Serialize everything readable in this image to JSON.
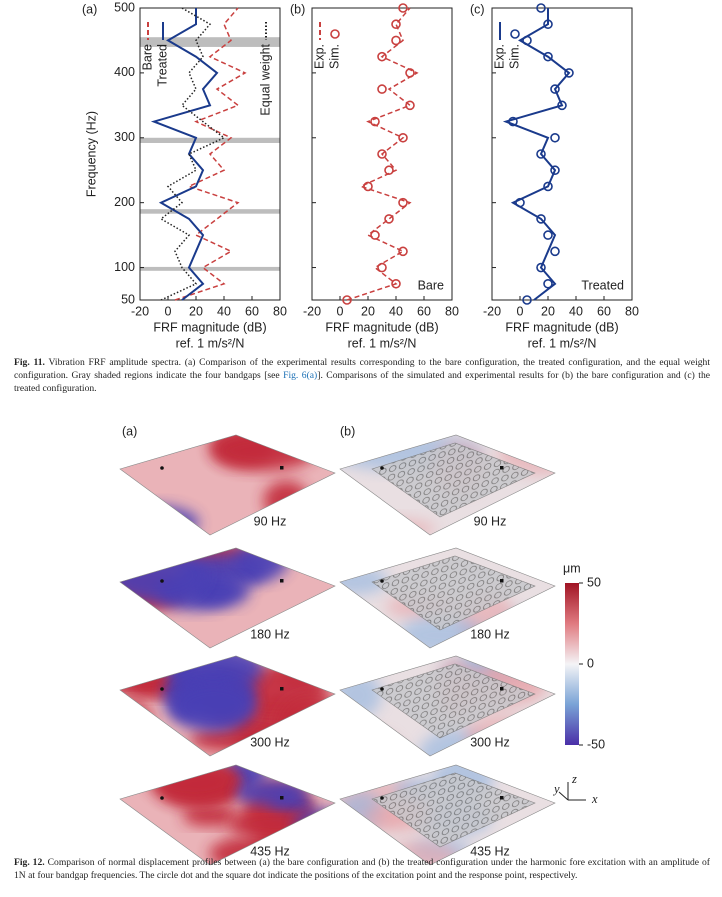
{
  "chart_data": [
    {
      "type": "line",
      "label": "(a)",
      "ylabel": "Frequency (Hz)",
      "xlabel": "FRF magnitude (dB)",
      "xlabel2": "ref. 1 m/s²/N",
      "xlim": [
        -20,
        80
      ],
      "xticks": [
        -20,
        0,
        20,
        40,
        60,
        80
      ],
      "ylim": [
        50,
        500
      ],
      "yticks": [
        50,
        100,
        200,
        300,
        400,
        500
      ],
      "bands": [
        [
          95,
          101
        ],
        [
          183,
          190
        ],
        [
          292,
          300
        ],
        [
          440,
          455
        ]
      ],
      "y": [
        50,
        75,
        100,
        125,
        150,
        175,
        200,
        225,
        250,
        275,
        300,
        325,
        350,
        375,
        400,
        425,
        450,
        475,
        500
      ],
      "series": [
        {
          "name": "Bare",
          "color": "#c9403f",
          "style": "dashed",
          "values": [
            5,
            40,
            25,
            45,
            20,
            35,
            50,
            15,
            40,
            30,
            45,
            20,
            50,
            35,
            55,
            30,
            45,
            40,
            50
          ]
        },
        {
          "name": "Treated",
          "color": "#1a3a8c",
          "style": "solid",
          "values": [
            10,
            25,
            15,
            20,
            25,
            15,
            -5,
            20,
            25,
            15,
            20,
            -10,
            30,
            25,
            35,
            20,
            0,
            20,
            20
          ]
        },
        {
          "name": "Equal weight",
          "color": "#222222",
          "style": "dotted",
          "values": [
            -5,
            20,
            10,
            5,
            15,
            -5,
            10,
            0,
            20,
            15,
            40,
            25,
            10,
            20,
            15,
            25,
            20,
            30,
            10
          ]
        }
      ]
    },
    {
      "type": "line",
      "label": "(b)",
      "xlabel": "FRF magnitude (dB)",
      "xlabel2": "ref. 1 m/s²/N",
      "annotation": "Bare",
      "xlim": [
        -20,
        80
      ],
      "xticks": [
        -20,
        0,
        20,
        40,
        60,
        80
      ],
      "ylim": [
        50,
        500
      ],
      "yticks": [
        50,
        100,
        200,
        300,
        400,
        500
      ],
      "y": [
        50,
        75,
        100,
        125,
        150,
        175,
        200,
        225,
        250,
        275,
        300,
        325,
        350,
        375,
        400,
        425,
        450,
        475,
        500
      ],
      "series": [
        {
          "name": "Exp.",
          "color": "#c9403f",
          "style": "dashed",
          "values": [
            5,
            40,
            25,
            45,
            20,
            35,
            50,
            15,
            40,
            30,
            45,
            20,
            50,
            35,
            55,
            30,
            45,
            40,
            50
          ]
        },
        {
          "name": "Sim.",
          "color": "#c9403f",
          "style": "circles",
          "values": [
            5,
            40,
            30,
            45,
            25,
            35,
            45,
            20,
            35,
            30,
            45,
            25,
            50,
            30,
            50,
            30,
            40,
            40,
            45
          ]
        }
      ]
    },
    {
      "type": "line",
      "label": "(c)",
      "xlabel": "FRF magnitude (dB)",
      "xlabel2": "ref. 1 m/s²/N",
      "annotation": "Treated",
      "xlim": [
        -20,
        80
      ],
      "xticks": [
        -20,
        0,
        20,
        40,
        60,
        80
      ],
      "ylim": [
        50,
        500
      ],
      "yticks": [
        50,
        100,
        200,
        300,
        400,
        500
      ],
      "y": [
        50,
        75,
        100,
        125,
        150,
        175,
        200,
        225,
        250,
        275,
        300,
        325,
        350,
        375,
        400,
        425,
        450,
        475,
        500
      ],
      "series": [
        {
          "name": "Exp.",
          "color": "#1a3a8c",
          "style": "solid",
          "values": [
            10,
            25,
            15,
            20,
            25,
            15,
            -5,
            20,
            25,
            15,
            20,
            -10,
            30,
            25,
            35,
            20,
            0,
            20,
            20
          ]
        },
        {
          "name": "Sim.",
          "color": "#1a3a8c",
          "style": "circles",
          "values": [
            5,
            20,
            15,
            25,
            20,
            15,
            0,
            20,
            25,
            15,
            25,
            -5,
            30,
            25,
            35,
            20,
            5,
            20,
            15
          ]
        }
      ]
    }
  ],
  "figure11_caption": {
    "label": "Fig. 11.",
    "text1": "Vibration FRF amplitude spectra. (a) Comparison of the experimental results corresponding to the bare configuration, the treated configuration, and the equal weight configuration. Gray shaded regions indicate the four bandgaps [see ",
    "link": "Fig. 6(a)",
    "text2": "]. Comparisons of the simulated and experimental results for (b) the bare configuration and (c) the treated configuration."
  },
  "figure12": {
    "label_a": "(a)",
    "label_b": "(b)",
    "frequencies": [
      "90 Hz",
      "180 Hz",
      "300 Hz",
      "435 Hz"
    ],
    "colorbar": {
      "unit": "μm",
      "ticks": [
        50,
        0,
        -50
      ],
      "range": [
        -50,
        50
      ]
    },
    "axes": [
      "x",
      "y",
      "z"
    ]
  },
  "figure12_caption": {
    "label": "Fig. 12.",
    "text": "Comparison of normal displacement profiles between (a) the bare configuration and (b) the treated configuration under the harmonic fore excitation with an amplitude of 1N at four bandgap frequencies. The circle dot and the square dot indicate the positions of the excitation point and the response point, respectively."
  }
}
